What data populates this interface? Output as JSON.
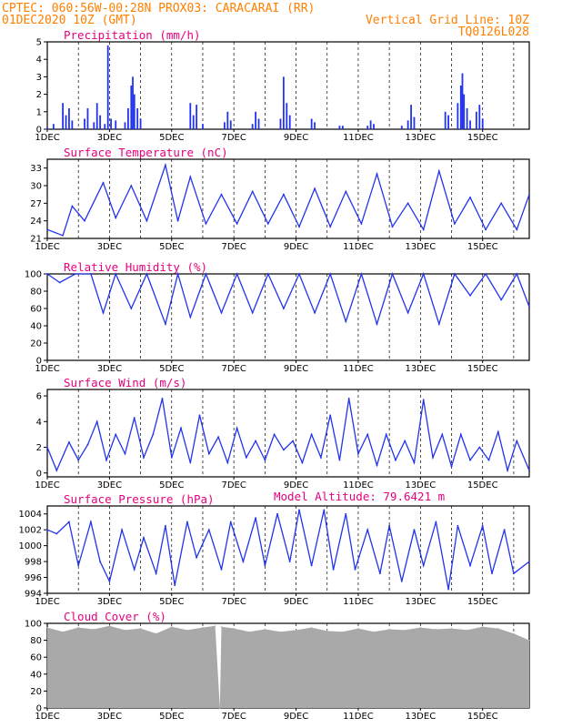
{
  "header": {
    "line1": "CPTEC:   060:56W-00:28N   PROX03: CARACARAI (RR)",
    "line2_left": "01DEC2020 10Z (GMT)",
    "line2_right": "Vertical Grid Line: 10Z",
    "line3_right": "TQ0126L028"
  },
  "model_altitude": "Model Altitude: 79.6421 m",
  "x_ticks": [
    "1DEC",
    "3DEC",
    "5DEC",
    "7DEC",
    "9DEC",
    "11DEC",
    "13DEC",
    "15DEC"
  ],
  "colors": {
    "line": "#2233ee",
    "bars": "#2233ee",
    "cloud": "#a9a9a9",
    "grid": "#000000",
    "header": "#ff7f00",
    "title": "#e6007e"
  },
  "chart_data": [
    {
      "type": "bar",
      "title": "Precipitation (mm/h)",
      "ylim": [
        0,
        5
      ],
      "yticks": [
        "0",
        "1",
        "2",
        "3",
        "4",
        "5"
      ],
      "x_range_days": [
        1,
        16.5
      ],
      "bars": [
        [
          1.0,
          0.1
        ],
        [
          1.2,
          0.3
        ],
        [
          1.5,
          1.5
        ],
        [
          1.6,
          0.8
        ],
        [
          1.7,
          1.2
        ],
        [
          1.8,
          0.5
        ],
        [
          2.2,
          0.6
        ],
        [
          2.3,
          1.2
        ],
        [
          2.5,
          0.4
        ],
        [
          2.6,
          1.5
        ],
        [
          2.7,
          0.8
        ],
        [
          2.85,
          0.3
        ],
        [
          2.95,
          4.8
        ],
        [
          3.05,
          0.6
        ],
        [
          3.2,
          0.5
        ],
        [
          3.5,
          0.4
        ],
        [
          3.6,
          1.2
        ],
        [
          3.7,
          2.5
        ],
        [
          3.75,
          3.0
        ],
        [
          3.8,
          2.0
        ],
        [
          3.9,
          1.2
        ],
        [
          4.0,
          0.6
        ],
        [
          5.6,
          1.5
        ],
        [
          5.7,
          0.8
        ],
        [
          5.8,
          1.4
        ],
        [
          6.0,
          0.3
        ],
        [
          6.7,
          0.4
        ],
        [
          6.8,
          1.0
        ],
        [
          6.9,
          0.5
        ],
        [
          7.6,
          0.3
        ],
        [
          7.7,
          1.0
        ],
        [
          7.8,
          0.6
        ],
        [
          8.5,
          0.6
        ],
        [
          8.6,
          3.0
        ],
        [
          8.7,
          1.5
        ],
        [
          8.8,
          0.8
        ],
        [
          9.5,
          0.6
        ],
        [
          9.6,
          0.4
        ],
        [
          10.4,
          0.2
        ],
        [
          10.5,
          0.2
        ],
        [
          11.3,
          0.2
        ],
        [
          11.4,
          0.5
        ],
        [
          11.5,
          0.3
        ],
        [
          12.4,
          0.2
        ],
        [
          12.6,
          0.5
        ],
        [
          12.7,
          1.4
        ],
        [
          12.8,
          0.7
        ],
        [
          13.8,
          1.0
        ],
        [
          13.9,
          0.8
        ],
        [
          14.2,
          1.5
        ],
        [
          14.3,
          2.5
        ],
        [
          14.35,
          3.2
        ],
        [
          14.4,
          2.0
        ],
        [
          14.5,
          1.2
        ],
        [
          14.6,
          0.5
        ],
        [
          14.8,
          1.0
        ],
        [
          14.9,
          1.4
        ],
        [
          15.0,
          0.6
        ]
      ]
    },
    {
      "type": "line",
      "title": "Surface Temperature (nC)",
      "ylim": [
        21,
        34.5
      ],
      "yticks": [
        "21",
        "24",
        "27",
        "30",
        "33"
      ],
      "x": [
        1.0,
        1.5,
        1.8,
        2.2,
        2.8,
        3.2,
        3.7,
        4.2,
        4.8,
        5.2,
        5.6,
        6.1,
        6.6,
        7.1,
        7.6,
        8.1,
        8.6,
        9.1,
        9.6,
        10.1,
        10.6,
        11.1,
        11.6,
        12.1,
        12.6,
        13.1,
        13.6,
        14.1,
        14.6,
        15.1,
        15.6,
        16.1,
        16.5
      ],
      "y": [
        22.5,
        21.5,
        26.5,
        24.0,
        30.5,
        24.5,
        30.0,
        24.0,
        33.5,
        24.0,
        31.5,
        23.5,
        28.5,
        23.5,
        29.0,
        23.5,
        28.5,
        23.0,
        29.5,
        23.0,
        29.0,
        23.5,
        32.0,
        23.0,
        27.0,
        22.5,
        32.5,
        23.5,
        28.0,
        22.5,
        27.0,
        22.5,
        28.5
      ]
    },
    {
      "type": "line",
      "title": "Relative Humidity (%)",
      "ylim": [
        0,
        100
      ],
      "yticks": [
        "0",
        "20",
        "40",
        "60",
        "80",
        "100"
      ],
      "x": [
        1.0,
        1.4,
        1.9,
        2.4,
        2.8,
        3.2,
        3.7,
        4.2,
        4.8,
        5.2,
        5.6,
        6.1,
        6.6,
        7.1,
        7.6,
        8.1,
        8.6,
        9.1,
        9.6,
        10.1,
        10.6,
        11.1,
        11.6,
        12.1,
        12.6,
        13.1,
        13.6,
        14.1,
        14.6,
        15.1,
        15.6,
        16.1,
        16.5
      ],
      "y": [
        100,
        90,
        100,
        100,
        55,
        100,
        60,
        100,
        42,
        100,
        50,
        100,
        55,
        100,
        55,
        100,
        60,
        100,
        55,
        100,
        45,
        100,
        42,
        100,
        55,
        100,
        42,
        100,
        75,
        100,
        70,
        100,
        62
      ]
    },
    {
      "type": "line",
      "title": "Surface Wind (m/s)",
      "ylim": [
        -0.3,
        6.5
      ],
      "yticks": [
        "0",
        "2",
        "4",
        "6"
      ],
      "x": [
        1.0,
        1.3,
        1.7,
        2.0,
        2.3,
        2.6,
        2.9,
        3.2,
        3.5,
        3.8,
        4.1,
        4.4,
        4.7,
        5.0,
        5.3,
        5.6,
        5.9,
        6.2,
        6.5,
        6.8,
        7.1,
        7.4,
        7.7,
        8.0,
        8.3,
        8.6,
        8.9,
        9.2,
        9.5,
        9.8,
        10.1,
        10.4,
        10.7,
        11.0,
        11.3,
        11.6,
        11.9,
        12.2,
        12.5,
        12.8,
        13.1,
        13.4,
        13.7,
        14.0,
        14.3,
        14.6,
        14.9,
        15.2,
        15.5,
        15.8,
        16.1,
        16.5
      ],
      "y": [
        2.0,
        0.2,
        2.4,
        1.0,
        2.2,
        4.0,
        1.0,
        3.0,
        1.5,
        4.3,
        1.2,
        3.0,
        5.8,
        1.2,
        3.5,
        0.8,
        4.5,
        1.5,
        2.8,
        0.8,
        3.5,
        1.2,
        2.5,
        1.0,
        3.0,
        1.8,
        2.5,
        0.8,
        3.0,
        1.2,
        4.5,
        1.0,
        5.8,
        1.5,
        3.0,
        0.6,
        3.0,
        1.0,
        2.5,
        0.8,
        5.7,
        1.2,
        3.0,
        0.5,
        3.0,
        1.0,
        2.0,
        1.0,
        3.2,
        0.2,
        2.5,
        0.2
      ]
    },
    {
      "type": "line",
      "title": "Surface Pressure (hPa)",
      "ylim": [
        994,
        1005
      ],
      "yticks": [
        "994",
        "996",
        "998",
        "1000",
        "1002",
        "1004"
      ],
      "x": [
        1.0,
        1.3,
        1.7,
        2.0,
        2.4,
        2.7,
        3.0,
        3.4,
        3.8,
        4.1,
        4.5,
        4.8,
        5.1,
        5.5,
        5.8,
        6.2,
        6.6,
        6.9,
        7.3,
        7.7,
        8.0,
        8.4,
        8.8,
        9.1,
        9.5,
        9.9,
        10.2,
        10.6,
        10.9,
        11.3,
        11.7,
        12.0,
        12.4,
        12.8,
        13.1,
        13.5,
        13.9,
        14.2,
        14.6,
        15.0,
        15.3,
        15.7,
        16.0,
        16.5
      ],
      "y": [
        1002.0,
        1001.5,
        1003.0,
        997.5,
        1003.0,
        998.0,
        995.5,
        1002.0,
        997.0,
        1001.0,
        996.5,
        1002.5,
        995.0,
        1003.0,
        998.5,
        1002.0,
        997.0,
        1003.0,
        998.0,
        1003.5,
        997.5,
        1004.0,
        998.0,
        1004.5,
        997.5,
        1004.5,
        997.0,
        1004.0,
        997.0,
        1002.0,
        996.5,
        1002.5,
        995.5,
        1002.0,
        997.5,
        1003.0,
        994.5,
        1002.5,
        997.5,
        1002.5,
        996.5,
        1002.0,
        996.5,
        998.0
      ]
    },
    {
      "type": "area",
      "title": "Cloud Cover (%)",
      "ylim": [
        0,
        100
      ],
      "yticks": [
        "0",
        "20",
        "40",
        "60",
        "80",
        "100"
      ],
      "x": [
        1.0,
        1.5,
        2.0,
        2.5,
        3.0,
        3.5,
        4.0,
        4.5,
        5.0,
        5.5,
        6.0,
        6.4,
        6.55,
        6.6,
        7.0,
        7.5,
        8.0,
        8.5,
        9.0,
        9.5,
        10.0,
        10.5,
        11.0,
        11.5,
        12.0,
        12.5,
        13.0,
        13.5,
        14.0,
        14.5,
        15.0,
        15.5,
        16.0,
        16.5
      ],
      "y": [
        95,
        90,
        95,
        93,
        97,
        92,
        94,
        88,
        96,
        92,
        95,
        97,
        0,
        96,
        94,
        90,
        93,
        90,
        92,
        95,
        91,
        90,
        94,
        90,
        93,
        92,
        95,
        93,
        94,
        92,
        96,
        94,
        88,
        80
      ]
    }
  ]
}
